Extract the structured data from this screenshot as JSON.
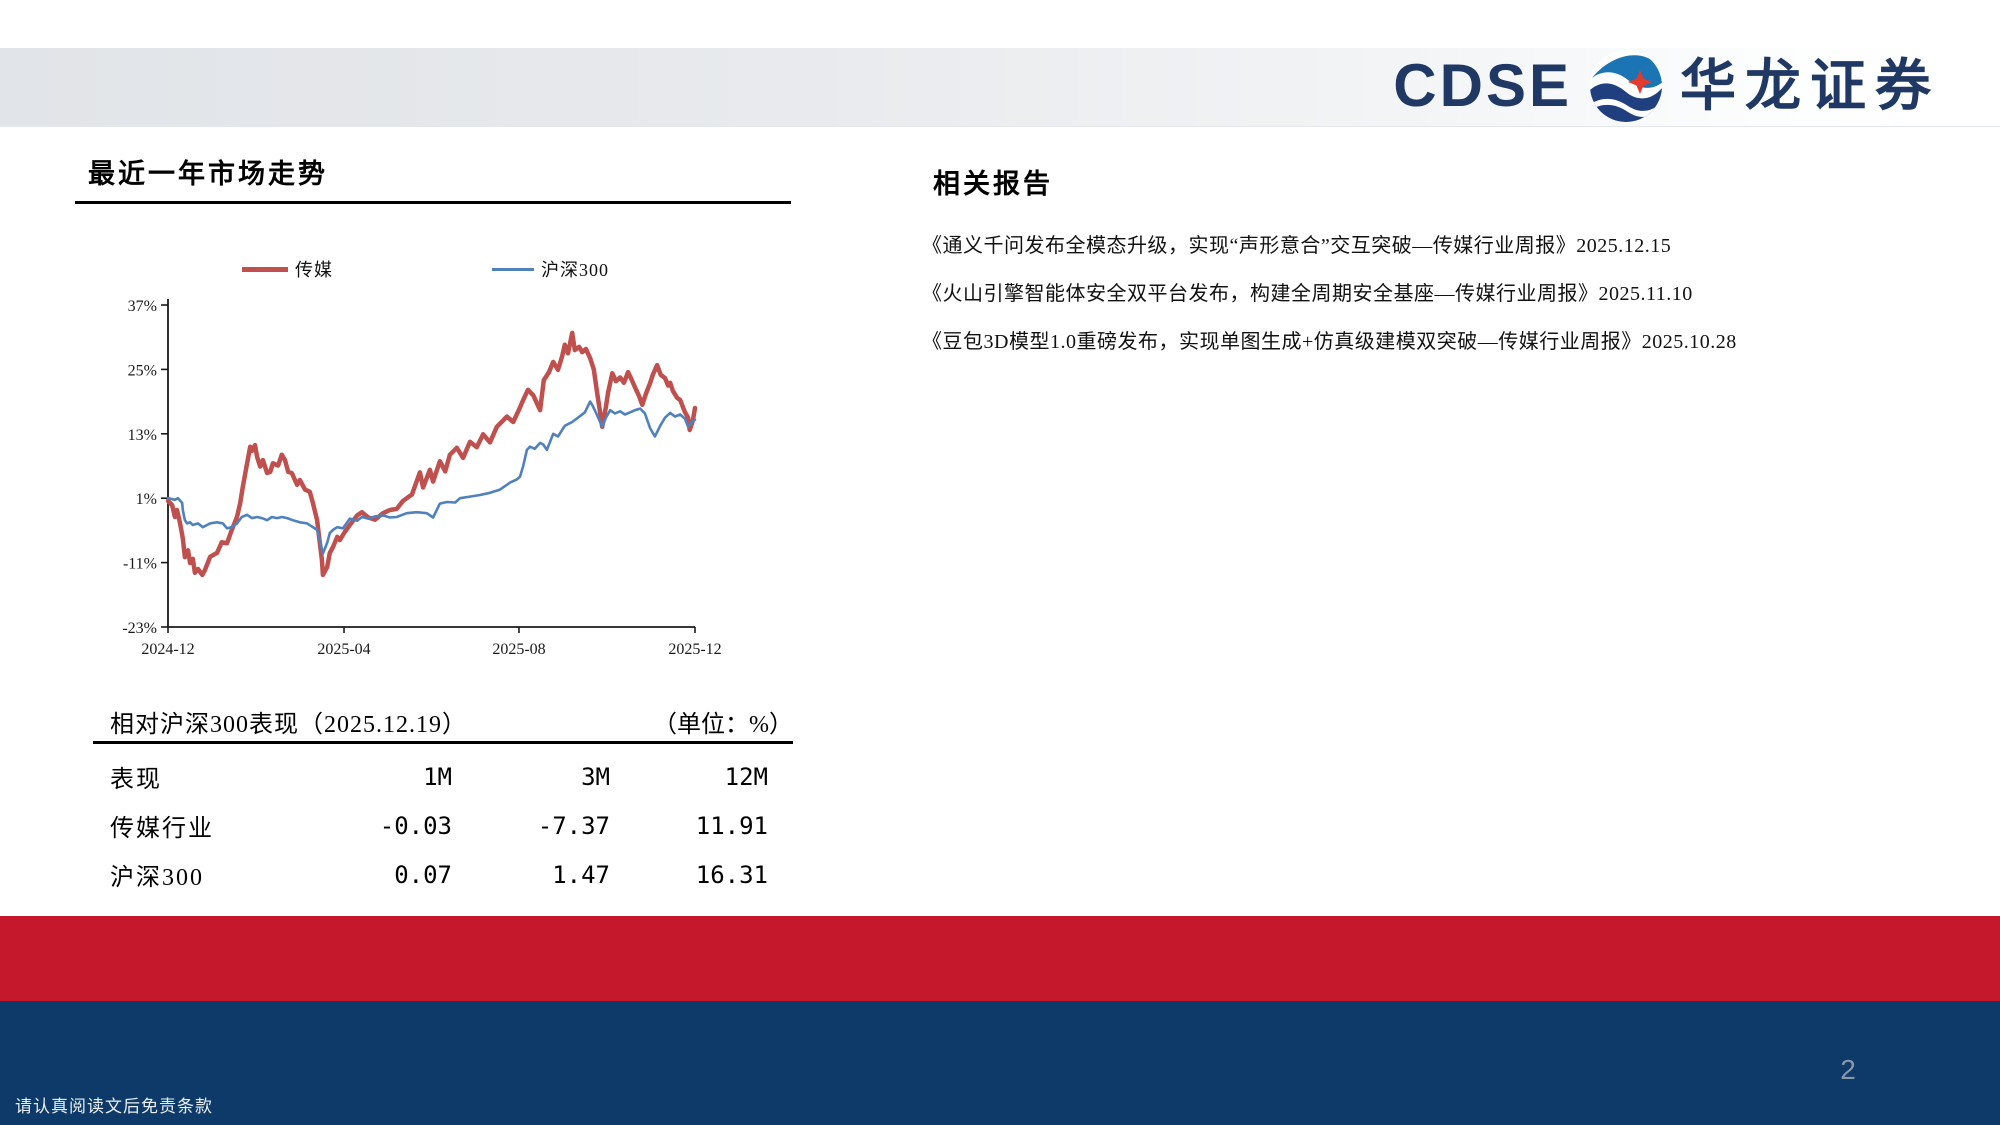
{
  "header": {
    "brand_latin": "CDSE",
    "brand_cn": "华龙证券"
  },
  "left_panel": {
    "title": "最近一年市场走势",
    "table": {
      "title": "相对沪深300表现（2025.12.19）",
      "unit_label": "（单位：%）",
      "columns": [
        "表现",
        "1M",
        "3M",
        "12M"
      ],
      "rows": [
        {
          "label": "传媒行业",
          "values": [
            "-0.03",
            "-7.37",
            "11.91"
          ]
        },
        {
          "label": "沪深300",
          "values": [
            "0.07",
            "1.47",
            "16.31"
          ]
        }
      ]
    }
  },
  "right_panel": {
    "title": "相关报告",
    "reports": [
      "《通义千问发布全模态升级，实现“声形意合”交互突破—传媒行业周报》2025.12.15",
      "《火山引擎智能体安全双平台发布，构建全周期安全基座—传媒行业周报》2025.11.10",
      "《豆包3D模型1.0重磅发布，实现单图生成+仿真级建模双突破—传媒行业周报》2025.10.28"
    ]
  },
  "footer": {
    "disclaimer": "请认真阅读文后免责条款",
    "page_number": "2"
  },
  "colors": {
    "brand_navy": "#1F3864",
    "emblem_blue": "#1B75B4",
    "emblem_navy": "#1F3F7F",
    "emblem_red": "#E33A2E",
    "footer_red": "#C5182C",
    "footer_navy": "#0D3A68",
    "series_media_red": "#C0504D",
    "series_csi_blue": "#4F81BD"
  },
  "chart_data": {
    "type": "line",
    "title": "最近一年市场走势",
    "xlabel": "",
    "ylabel": "",
    "ylim": [
      -23,
      37
    ],
    "y_ticks": [
      37,
      25,
      13,
      1,
      -11,
      -23
    ],
    "y_tick_suffix": "%",
    "x_ticks": [
      "2024-12",
      "2025-04",
      "2025-08",
      "2025-12"
    ],
    "x_tick_t": [
      0,
      0.334,
      0.666,
      1.0
    ],
    "grid": false,
    "legend_position": "top",
    "point_format": "[fraction_of_x_axis_2024-12_to_2025-12, percent_return]",
    "series": [
      {
        "name": "传媒",
        "color": "#C0504D",
        "width": 4.5,
        "points": [
          [
            0.0,
            0.5
          ],
          [
            0.008,
            -0.3
          ],
          [
            0.013,
            -2.5
          ],
          [
            0.017,
            -1.2
          ],
          [
            0.023,
            -3.7
          ],
          [
            0.028,
            -6.5
          ],
          [
            0.032,
            -10.0
          ],
          [
            0.038,
            -8.7
          ],
          [
            0.042,
            -11.1
          ],
          [
            0.047,
            -10.3
          ],
          [
            0.051,
            -12.9
          ],
          [
            0.057,
            -12.2
          ],
          [
            0.065,
            -13.3
          ],
          [
            0.07,
            -12.4
          ],
          [
            0.08,
            -9.9
          ],
          [
            0.093,
            -9.2
          ],
          [
            0.102,
            -7.2
          ],
          [
            0.112,
            -7.4
          ],
          [
            0.121,
            -4.9
          ],
          [
            0.131,
            -2.5
          ],
          [
            0.137,
            0.1
          ],
          [
            0.142,
            3.1
          ],
          [
            0.15,
            7.5
          ],
          [
            0.156,
            10.6
          ],
          [
            0.159,
            9.8
          ],
          [
            0.165,
            10.9
          ],
          [
            0.169,
            8.7
          ],
          [
            0.175,
            6.9
          ],
          [
            0.18,
            8.1
          ],
          [
            0.188,
            5.7
          ],
          [
            0.194,
            5.9
          ],
          [
            0.199,
            7.5
          ],
          [
            0.209,
            7.1
          ],
          [
            0.216,
            9.1
          ],
          [
            0.222,
            8.1
          ],
          [
            0.228,
            5.9
          ],
          [
            0.235,
            5.7
          ],
          [
            0.245,
            3.5
          ],
          [
            0.25,
            4.4
          ],
          [
            0.26,
            2.6
          ],
          [
            0.269,
            2.2
          ],
          [
            0.275,
            0.1
          ],
          [
            0.283,
            -3.1
          ],
          [
            0.288,
            -7.3
          ],
          [
            0.292,
            -10.5
          ],
          [
            0.294,
            -13.3
          ],
          [
            0.302,
            -11.8
          ],
          [
            0.307,
            -9.2
          ],
          [
            0.313,
            -8.1
          ],
          [
            0.321,
            -6.2
          ],
          [
            0.326,
            -6.8
          ],
          [
            0.336,
            -5.2
          ],
          [
            0.345,
            -4.0
          ],
          [
            0.359,
            -2.2
          ],
          [
            0.368,
            -1.6
          ],
          [
            0.38,
            -2.6
          ],
          [
            0.393,
            -3.0
          ],
          [
            0.408,
            -1.8
          ],
          [
            0.421,
            -1.2
          ],
          [
            0.434,
            -1.0
          ],
          [
            0.446,
            0.5
          ],
          [
            0.463,
            1.7
          ],
          [
            0.478,
            5.8
          ],
          [
            0.484,
            3.0
          ],
          [
            0.497,
            6.3
          ],
          [
            0.503,
            4.1
          ],
          [
            0.516,
            7.9
          ],
          [
            0.526,
            6.0
          ],
          [
            0.535,
            9.1
          ],
          [
            0.548,
            10.4
          ],
          [
            0.56,
            8.5
          ],
          [
            0.573,
            11.5
          ],
          [
            0.586,
            10.5
          ],
          [
            0.598,
            12.9
          ],
          [
            0.611,
            11.4
          ],
          [
            0.624,
            14.3
          ],
          [
            0.636,
            15.5
          ],
          [
            0.643,
            16.2
          ],
          [
            0.655,
            15.2
          ],
          [
            0.666,
            17.5
          ],
          [
            0.674,
            19.3
          ],
          [
            0.683,
            21.2
          ],
          [
            0.693,
            20.2
          ],
          [
            0.706,
            17.4
          ],
          [
            0.713,
            23.0
          ],
          [
            0.723,
            24.5
          ],
          [
            0.731,
            26.4
          ],
          [
            0.74,
            24.9
          ],
          [
            0.748,
            27.5
          ],
          [
            0.753,
            29.6
          ],
          [
            0.759,
            28.0
          ],
          [
            0.767,
            31.8
          ],
          [
            0.772,
            28.6
          ],
          [
            0.78,
            29.2
          ],
          [
            0.786,
            28.2
          ],
          [
            0.793,
            28.8
          ],
          [
            0.801,
            27.1
          ],
          [
            0.808,
            25.0
          ],
          [
            0.814,
            20.8
          ],
          [
            0.82,
            17.0
          ],
          [
            0.824,
            14.3
          ],
          [
            0.831,
            18.0
          ],
          [
            0.835,
            20.6
          ],
          [
            0.843,
            24.3
          ],
          [
            0.85,
            22.8
          ],
          [
            0.858,
            23.5
          ],
          [
            0.865,
            22.5
          ],
          [
            0.873,
            24.5
          ],
          [
            0.88,
            23.0
          ],
          [
            0.886,
            21.7
          ],
          [
            0.894,
            20.0
          ],
          [
            0.9,
            18.4
          ],
          [
            0.907,
            20.5
          ],
          [
            0.915,
            22.5
          ],
          [
            0.92,
            24.0
          ],
          [
            0.928,
            25.8
          ],
          [
            0.935,
            24.0
          ],
          [
            0.943,
            23.4
          ],
          [
            0.949,
            22.0
          ],
          [
            0.953,
            22.5
          ],
          [
            0.958,
            21.0
          ],
          [
            0.966,
            19.7
          ],
          [
            0.972,
            19.3
          ],
          [
            0.977,
            18.0
          ],
          [
            0.981,
            17.0
          ],
          [
            0.987,
            16.0
          ],
          [
            0.99,
            13.7
          ],
          [
            0.996,
            15.5
          ],
          [
            1.0,
            17.8
          ]
        ]
      },
      {
        "name": "沪深300",
        "color": "#4F81BD",
        "width": 2.6,
        "points": [
          [
            0.0,
            1.0
          ],
          [
            0.013,
            0.7
          ],
          [
            0.019,
            1.0
          ],
          [
            0.027,
            0.1
          ],
          [
            0.028,
            -1.2
          ],
          [
            0.032,
            -3.1
          ],
          [
            0.036,
            -3.7
          ],
          [
            0.042,
            -3.5
          ],
          [
            0.047,
            -4.0
          ],
          [
            0.057,
            -3.7
          ],
          [
            0.066,
            -4.4
          ],
          [
            0.08,
            -3.7
          ],
          [
            0.093,
            -3.5
          ],
          [
            0.104,
            -3.7
          ],
          [
            0.112,
            -4.6
          ],
          [
            0.121,
            -4.4
          ],
          [
            0.131,
            -3.7
          ],
          [
            0.14,
            -2.5
          ],
          [
            0.15,
            -2.1
          ],
          [
            0.159,
            -2.7
          ],
          [
            0.169,
            -2.5
          ],
          [
            0.178,
            -2.7
          ],
          [
            0.188,
            -3.1
          ],
          [
            0.197,
            -2.5
          ],
          [
            0.207,
            -2.7
          ],
          [
            0.216,
            -2.5
          ],
          [
            0.226,
            -2.7
          ],
          [
            0.237,
            -3.1
          ],
          [
            0.25,
            -3.5
          ],
          [
            0.264,
            -3.7
          ],
          [
            0.275,
            -4.4
          ],
          [
            0.283,
            -4.9
          ],
          [
            0.288,
            -6.8
          ],
          [
            0.294,
            -9.3
          ],
          [
            0.302,
            -7.3
          ],
          [
            0.307,
            -5.5
          ],
          [
            0.313,
            -4.9
          ],
          [
            0.321,
            -4.4
          ],
          [
            0.332,
            -4.6
          ],
          [
            0.345,
            -2.8
          ],
          [
            0.359,
            -3.2
          ],
          [
            0.368,
            -2.5
          ],
          [
            0.38,
            -2.8
          ],
          [
            0.393,
            -2.4
          ],
          [
            0.408,
            -2.2
          ],
          [
            0.421,
            -2.6
          ],
          [
            0.434,
            -2.5
          ],
          [
            0.453,
            -1.8
          ],
          [
            0.472,
            -1.6
          ],
          [
            0.491,
            -1.8
          ],
          [
            0.503,
            -2.6
          ],
          [
            0.516,
            0.0
          ],
          [
            0.529,
            0.3
          ],
          [
            0.545,
            0.2
          ],
          [
            0.554,
            1.0
          ],
          [
            0.573,
            1.3
          ],
          [
            0.592,
            1.6
          ],
          [
            0.611,
            2.0
          ],
          [
            0.63,
            2.6
          ],
          [
            0.649,
            3.9
          ],
          [
            0.662,
            4.5
          ],
          [
            0.668,
            5.0
          ],
          [
            0.674,
            7.0
          ],
          [
            0.681,
            10.0
          ],
          [
            0.687,
            10.6
          ],
          [
            0.696,
            10.2
          ],
          [
            0.706,
            11.3
          ],
          [
            0.712,
            11.0
          ],
          [
            0.719,
            10.0
          ],
          [
            0.731,
            13.0
          ],
          [
            0.74,
            12.5
          ],
          [
            0.753,
            14.5
          ],
          [
            0.767,
            15.2
          ],
          [
            0.782,
            16.3
          ],
          [
            0.791,
            17.0
          ],
          [
            0.801,
            19.0
          ],
          [
            0.806,
            18.2
          ],
          [
            0.814,
            16.5
          ],
          [
            0.824,
            14.3
          ],
          [
            0.831,
            16.0
          ],
          [
            0.839,
            17.4
          ],
          [
            0.848,
            16.8
          ],
          [
            0.858,
            17.2
          ],
          [
            0.867,
            16.6
          ],
          [
            0.877,
            17.0
          ],
          [
            0.886,
            17.4
          ],
          [
            0.896,
            17.7
          ],
          [
            0.905,
            16.8
          ],
          [
            0.915,
            14.0
          ],
          [
            0.924,
            12.5
          ],
          [
            0.934,
            14.5
          ],
          [
            0.943,
            16.0
          ],
          [
            0.953,
            16.9
          ],
          [
            0.962,
            16.2
          ],
          [
            0.972,
            16.6
          ],
          [
            0.981,
            15.8
          ],
          [
            0.987,
            14.3
          ],
          [
            0.994,
            15.2
          ],
          [
            1.0,
            15.6
          ]
        ]
      }
    ]
  }
}
